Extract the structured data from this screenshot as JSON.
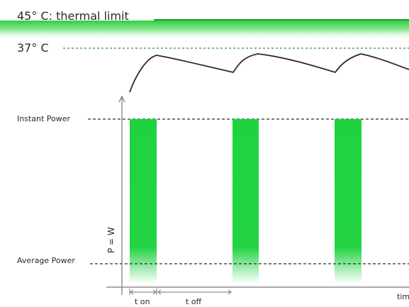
{
  "labels": {
    "thermal_limit": "45° C: thermal limit",
    "body_temp": "37° C",
    "instant_power": "Instant Power",
    "average_power": "Average Power",
    "y_axis": "P = W",
    "x_axis": "tim",
    "t_on": "t on",
    "t_off": "t off"
  },
  "colors": {
    "pulse": "#1fd33f",
    "thermal_band": "#22cc33",
    "line": "#2a2a2a",
    "dash_green": "#2a9a2a",
    "axis": "#777777"
  },
  "pulses": 3
}
